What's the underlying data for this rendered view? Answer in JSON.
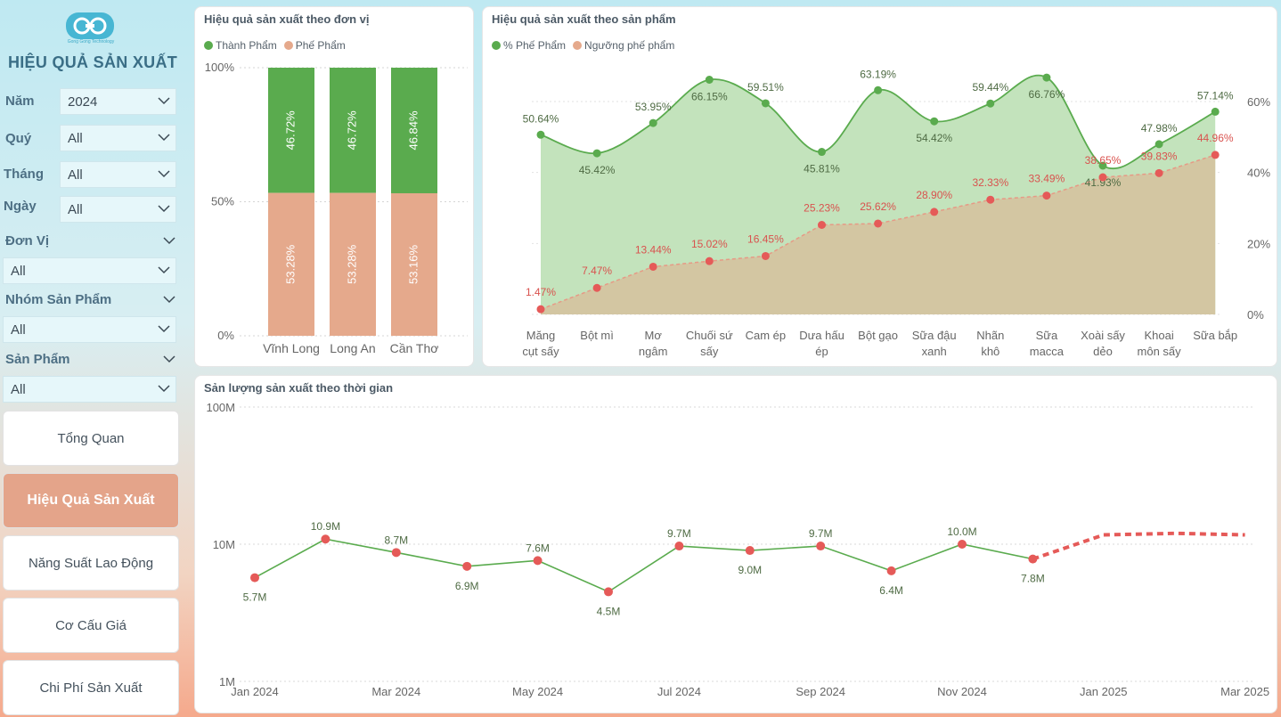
{
  "sidebar": {
    "logo_caption": "Gong Gong Technology",
    "title": "HIỆU QUẢ SẢN XUẤT",
    "filters": [
      {
        "label": "Năm",
        "value": "2024"
      },
      {
        "label": "Quý",
        "value": "All"
      },
      {
        "label": "Tháng",
        "value": "All"
      },
      {
        "label": "Ngày",
        "value": "All"
      },
      {
        "label": "Đơn Vị",
        "value": "All"
      },
      {
        "label": "Nhóm Sản Phẩm",
        "value": "All"
      },
      {
        "label": "Sản Phẩm",
        "value": "All"
      }
    ],
    "nav": [
      {
        "label": "Tổng Quan"
      },
      {
        "label": "Hiệu Quả Sản Xuất"
      },
      {
        "label": "Năng Suất Lao Động"
      },
      {
        "label": "Cơ Cấu Giá"
      },
      {
        "label": "Chi Phí Sản Xuất"
      }
    ]
  },
  "colors": {
    "green": "#5aab4e",
    "salmon": "#e5a98c",
    "red": "#e55a58",
    "area_green": "#c3e3bc",
    "area_tan": "#d3c6a2"
  },
  "chart_data": [
    {
      "type": "bar",
      "title": "Hiệu quả sản xuất theo đơn vị",
      "stacked": "100%",
      "categories": [
        "Vĩnh Long",
        "Long An",
        "Cần Thơ"
      ],
      "series": [
        {
          "name": "Thành Phẩm",
          "values": [
            46.72,
            46.72,
            46.84
          ],
          "labels": [
            "46.72%",
            "46.72%",
            "46.84%"
          ]
        },
        {
          "name": "Phế Phẩm",
          "values": [
            53.28,
            53.28,
            53.16
          ],
          "labels": [
            "53.28%",
            "53.28%",
            "53.16%"
          ]
        }
      ],
      "y_ticks": [
        "100%",
        "50%",
        "0%"
      ],
      "legend": "top-left"
    },
    {
      "type": "area",
      "title": "Hiệu quả sản xuất theo sản phẩm",
      "categories": [
        "Măng cụt sấy",
        "Bột mì",
        "Mơ ngâm",
        "Chuối sứ sấy",
        "Cam ép",
        "Dưa hấu ép",
        "Bột gạo",
        "Sữa đậu xanh",
        "Nhãn khô",
        "Sữa macca",
        "Xoài sấy dẻo",
        "Khoai môn sấy",
        "Sữa bắp"
      ],
      "series": [
        {
          "name": "% Phế Phẩm",
          "values": [
            50.64,
            45.42,
            53.95,
            66.15,
            59.51,
            45.81,
            63.19,
            54.42,
            59.44,
            66.76,
            41.93,
            47.98,
            57.14
          ],
          "labels": [
            "50.64%",
            "45.42%",
            "53.95%",
            "66.15%",
            "59.51%",
            "45.81%",
            "63.19%",
            "54.42%",
            "59.44%",
            "66.76%",
            "41.93%",
            "47.98%",
            "57.14%"
          ]
        },
        {
          "name": "Ngưỡng phế phẩm",
          "values": [
            1.47,
            7.47,
            13.44,
            15.02,
            16.45,
            25.23,
            25.62,
            28.9,
            32.33,
            33.49,
            38.65,
            39.83,
            44.96
          ],
          "labels": [
            "1.47%",
            "7.47%",
            "13.44%",
            "15.02%",
            "16.45%",
            "25.23%",
            "25.62%",
            "28.90%",
            "32.33%",
            "33.49%",
            "38.65%",
            "39.83%",
            "44.96%"
          ]
        }
      ],
      "y_ticks": [
        "60%",
        "40%",
        "20%",
        "0%"
      ],
      "ylim": [
        0,
        70
      ],
      "legend": "top-left"
    },
    {
      "type": "line",
      "title": "Sản lượng sản xuất theo thời gian",
      "yscale": "log",
      "y_ticks": [
        "100M",
        "10M",
        "1M"
      ],
      "x_ticks": [
        "Jan 2024",
        "Mar 2024",
        "May 2024",
        "Jul 2024",
        "Sep 2024",
        "Nov 2024",
        "Jan 2025",
        "Mar 2025"
      ],
      "series": [
        {
          "name": "actual",
          "x": [
            "2024-01",
            "2024-02",
            "2024-03",
            "2024-04",
            "2024-05",
            "2024-06",
            "2024-07",
            "2024-08",
            "2024-09",
            "2024-10",
            "2024-11",
            "2024-12"
          ],
          "values": [
            5.7,
            10.9,
            8.7,
            6.9,
            7.6,
            4.5,
            9.7,
            9.0,
            9.7,
            6.4,
            10.0,
            7.8
          ],
          "labels": [
            "5.7M",
            "10.9M",
            "8.7M",
            "6.9M",
            "7.6M",
            "4.5M",
            "9.7M",
            "9.0M",
            "9.7M",
            "6.4M",
            "10.0M",
            "7.8M"
          ]
        },
        {
          "name": "forecast",
          "x": [
            "2024-12",
            "2025-01",
            "2025-02",
            "2025-03"
          ],
          "values": [
            7.8,
            11.7,
            12.0,
            11.7
          ]
        }
      ]
    }
  ]
}
